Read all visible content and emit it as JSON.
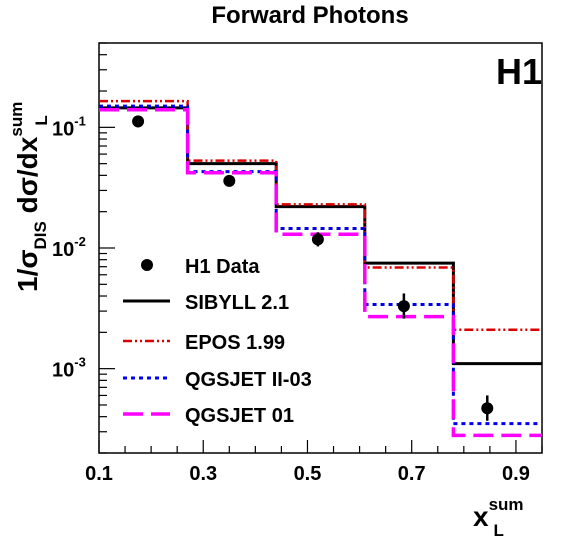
{
  "chart_data": {
    "type": "line",
    "title": "Forward Photons",
    "experiment_label": "H1",
    "ylabel": {
      "main": "1/σ",
      "sub1": "DIS",
      "mid": " dσ/dx",
      "sup": "sum",
      "sub2": "L"
    },
    "xlabel": {
      "main": "x",
      "sup": "sum",
      "sub": "L"
    },
    "xlim": [
      0.1,
      0.95
    ],
    "ylim": [
      0.0002,
      0.5
    ],
    "yscale": "log",
    "x_ticks": [
      "0.1",
      "0.3",
      "0.5",
      "0.7",
      "0.9"
    ],
    "x_tick_values": [
      0.1,
      0.3,
      0.5,
      0.7,
      0.9
    ],
    "y_ticks": [
      {
        "value": 0.1,
        "base": "10",
        "exp": "-1"
      },
      {
        "value": 0.01,
        "base": "10",
        "exp": "-2"
      },
      {
        "value": 0.001,
        "base": "10",
        "exp": "-3"
      }
    ],
    "bin_edges": [
      0.1,
      0.27,
      0.44,
      0.61,
      0.78,
      0.95
    ],
    "data": {
      "name": "H1 Data",
      "x": [
        0.175,
        0.35,
        0.52,
        0.685,
        0.845
      ],
      "y": [
        0.112,
        0.036,
        0.0118,
        0.0033,
        0.00047
      ],
      "y_err_low": [
        0.1,
        0.0325,
        0.0103,
        0.0026,
        0.00037
      ],
      "y_err_high": [
        0.124,
        0.0395,
        0.0135,
        0.0042,
        0.0006
      ]
    },
    "series": [
      {
        "name": "SIBYLL 2.1",
        "color": "#000000",
        "style": "solid",
        "values": [
          0.145,
          0.05,
          0.022,
          0.0075,
          0.0011
        ]
      },
      {
        "name": "EPOS 1.99",
        "color": "#dd0000",
        "style": "dashdot",
        "values": [
          0.165,
          0.053,
          0.023,
          0.0069,
          0.0021
        ]
      },
      {
        "name": "QGSJET II-03",
        "color": "#0000ee",
        "style": "dotted",
        "values": [
          0.15,
          0.043,
          0.0145,
          0.0034,
          0.00035
        ]
      },
      {
        "name": "QGSJET 01",
        "color": "#ff00ff",
        "style": "longdash",
        "values": [
          0.14,
          0.042,
          0.013,
          0.0027,
          0.00028
        ]
      }
    ],
    "legend_position": "lower-left",
    "grid": false
  }
}
